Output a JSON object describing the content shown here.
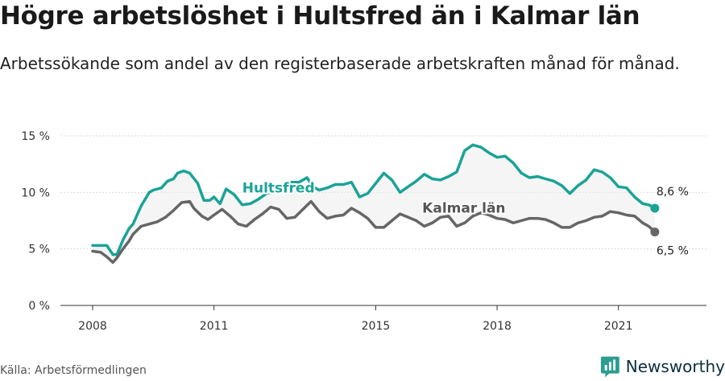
{
  "title": "Högre arbetslöshet i Hultsfred än i Kalmar län",
  "subtitle": "Arbetssökande som andel av den registerbaserade arbetskraften månad för månad.",
  "source": "Källa: Arbetsförmedlingen",
  "brand": {
    "name": "Newsworthy",
    "icon": "newsworthy-logo-icon",
    "color": "#2a9d8f"
  },
  "chart_data": {
    "type": "line",
    "title": "",
    "xlabel": "",
    "ylabel": "",
    "xlim": [
      2008,
      2022.5
    ],
    "ylim": [
      0,
      15
    ],
    "yticks": [
      0,
      5,
      10,
      15
    ],
    "ytick_labels": [
      "0 %",
      "5 %",
      "10 %",
      "15 %"
    ],
    "xticks": [
      2008,
      2011,
      2015,
      2018,
      2021
    ],
    "xtick_labels": [
      "2008",
      "2011",
      "2015",
      "2018",
      "2021"
    ],
    "grid": true,
    "band_between_series": true,
    "series": [
      {
        "name": "Hultsfred",
        "color": "#1aa396",
        "end_label": "8,6 %",
        "x": [
          2008.0,
          2008.2,
          2008.35,
          2008.5,
          2008.6,
          2008.75,
          2008.9,
          2009.0,
          2009.2,
          2009.4,
          2009.5,
          2009.7,
          2009.85,
          2010.0,
          2010.1,
          2010.25,
          2010.4,
          2010.6,
          2010.75,
          2010.9,
          2011.0,
          2011.15,
          2011.3,
          2011.5,
          2011.7,
          2011.9,
          2012.1,
          2012.3,
          2012.5,
          2012.7,
          2012.9,
          2013.1,
          2013.3,
          2013.45,
          2013.6,
          2013.8,
          2014.0,
          2014.2,
          2014.4,
          2014.6,
          2014.8,
          2015.0,
          2015.2,
          2015.4,
          2015.6,
          2015.8,
          2016.0,
          2016.2,
          2016.4,
          2016.6,
          2016.8,
          2017.0,
          2017.2,
          2017.4,
          2017.6,
          2017.8,
          2018.0,
          2018.2,
          2018.4,
          2018.6,
          2018.8,
          2019.0,
          2019.2,
          2019.4,
          2019.6,
          2019.8,
          2020.0,
          2020.2,
          2020.4,
          2020.6,
          2020.8,
          2021.0,
          2021.2,
          2021.4,
          2021.6,
          2021.75,
          2021.9
        ],
        "y": [
          5.3,
          5.3,
          5.3,
          4.5,
          4.5,
          5.8,
          6.8,
          7.2,
          8.8,
          10.0,
          10.2,
          10.4,
          11.0,
          11.2,
          11.7,
          11.9,
          11.7,
          10.8,
          9.3,
          9.3,
          9.6,
          9.0,
          10.3,
          9.8,
          8.9,
          9.0,
          9.4,
          9.9,
          10.1,
          10.6,
          10.9,
          10.9,
          11.3,
          10.5,
          10.2,
          10.4,
          10.7,
          10.7,
          10.9,
          9.6,
          9.9,
          10.8,
          11.7,
          11.1,
          10.0,
          10.5,
          11.0,
          11.6,
          11.2,
          11.1,
          11.4,
          11.8,
          13.7,
          14.2,
          14.0,
          13.5,
          13.1,
          13.2,
          12.6,
          11.7,
          11.3,
          11.4,
          11.2,
          11.0,
          10.6,
          9.9,
          10.6,
          11.1,
          12.0,
          11.8,
          11.3,
          10.5,
          10.4,
          9.6,
          9.0,
          8.9,
          8.6
        ]
      },
      {
        "name": "Kalmar län",
        "color": "#666666",
        "end_label": "6,5 %",
        "x": [
          2008.0,
          2008.2,
          2008.35,
          2008.5,
          2008.6,
          2008.75,
          2008.9,
          2009.0,
          2009.2,
          2009.4,
          2009.6,
          2009.8,
          2010.0,
          2010.2,
          2010.4,
          2010.5,
          2010.7,
          2010.85,
          2011.0,
          2011.2,
          2011.4,
          2011.6,
          2011.8,
          2012.0,
          2012.2,
          2012.4,
          2012.6,
          2012.8,
          2013.0,
          2013.2,
          2013.4,
          2013.6,
          2013.8,
          2014.0,
          2014.2,
          2014.4,
          2014.6,
          2014.8,
          2015.0,
          2015.2,
          2015.4,
          2015.6,
          2015.8,
          2016.0,
          2016.2,
          2016.4,
          2016.6,
          2016.8,
          2017.0,
          2017.2,
          2017.4,
          2017.6,
          2017.8,
          2018.0,
          2018.2,
          2018.4,
          2018.6,
          2018.8,
          2019.0,
          2019.2,
          2019.4,
          2019.6,
          2019.8,
          2020.0,
          2020.2,
          2020.4,
          2020.6,
          2020.8,
          2021.0,
          2021.2,
          2021.4,
          2021.6,
          2021.75,
          2021.9
        ],
        "y": [
          4.8,
          4.7,
          4.3,
          3.8,
          4.2,
          5.0,
          5.7,
          6.3,
          7.0,
          7.2,
          7.4,
          7.8,
          8.4,
          9.1,
          9.2,
          8.6,
          7.9,
          7.6,
          8.0,
          8.5,
          7.9,
          7.2,
          7.0,
          7.6,
          8.1,
          8.7,
          8.5,
          7.7,
          7.8,
          8.5,
          9.2,
          8.3,
          7.7,
          7.9,
          8.0,
          8.6,
          8.2,
          7.7,
          6.9,
          6.9,
          7.5,
          8.1,
          7.8,
          7.5,
          7.0,
          7.3,
          7.8,
          7.9,
          7.0,
          7.3,
          7.9,
          8.2,
          8.0,
          7.7,
          7.6,
          7.3,
          7.5,
          7.7,
          7.7,
          7.6,
          7.3,
          6.9,
          6.9,
          7.3,
          7.5,
          7.8,
          7.9,
          8.3,
          8.2,
          8.0,
          7.9,
          7.3,
          7.0,
          6.5
        ]
      }
    ]
  }
}
